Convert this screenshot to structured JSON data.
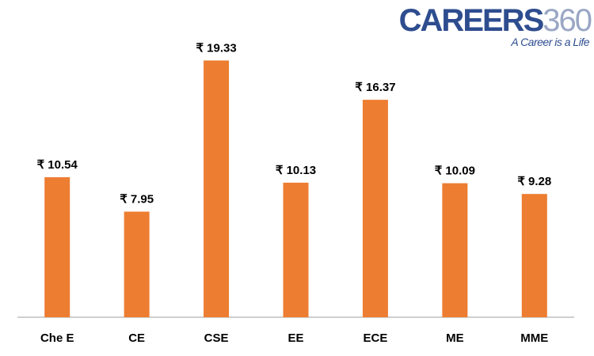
{
  "logo": {
    "word": "CAREERS",
    "number": "360",
    "tagline": "A Career is a Life"
  },
  "colors": {
    "bar": "#ed7d31",
    "axis": "#bfbfbf",
    "logo_primary": "#2e4d8f",
    "logo_secondary": "#9aa7c4"
  },
  "chart_data": {
    "type": "bar",
    "categories": [
      "Che E",
      "CE",
      "CSE",
      "EE",
      "ECE",
      "ME",
      "MME"
    ],
    "values": [
      10.54,
      7.95,
      19.33,
      10.13,
      16.37,
      10.09,
      9.28
    ],
    "data_labels": [
      "₹ 10.54",
      "₹ 7.95",
      "₹ 19.33",
      "₹ 10.13",
      "₹ 16.37",
      "₹ 10.09",
      "₹ 9.28"
    ],
    "title": "",
    "xlabel": "",
    "ylabel": "",
    "ylim": [
      0,
      21.5
    ],
    "grid": false,
    "legend": "none"
  }
}
